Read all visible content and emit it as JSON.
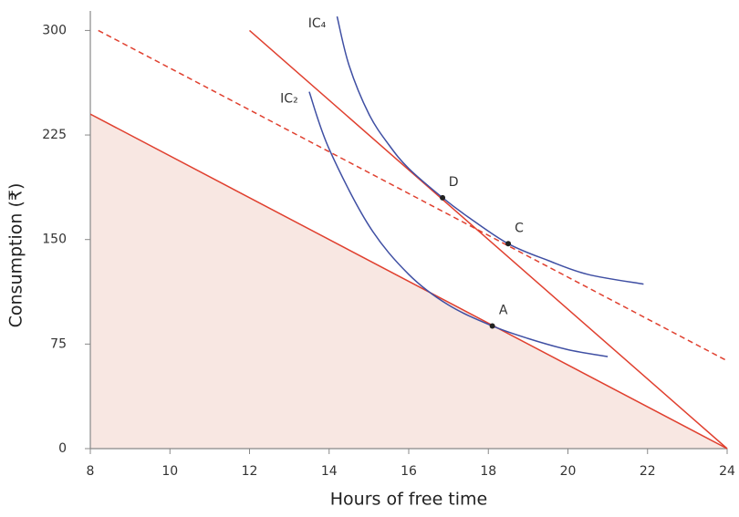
{
  "chart_data": {
    "type": "line",
    "x_label": "Hours of free time",
    "y_label": "Consumption (₹)",
    "xlim": [
      8,
      24
    ],
    "ylim": [
      0,
      314
    ],
    "xticks": [
      8,
      10,
      12,
      14,
      16,
      18,
      20,
      22,
      24
    ],
    "yticks": [
      0,
      75,
      150,
      225,
      300
    ],
    "budget_lines": [
      {
        "x": [
          8,
          24
        ],
        "y": [
          240,
          0
        ],
        "color": "#e0402f",
        "dashed": false,
        "fill": "#f8e7e2"
      },
      {
        "x": [
          12,
          24
        ],
        "y": [
          300,
          0
        ],
        "color": "#e0402f",
        "dashed": false
      },
      {
        "x": [
          8.2,
          24
        ],
        "y": [
          300,
          63
        ],
        "color": "#e0402f",
        "dashed": true
      }
    ],
    "series": [
      {
        "name": "IC₂",
        "color": "#3f4fa3",
        "x": [
          13.5,
          14,
          15,
          16,
          17,
          18.1,
          19,
          20,
          21
        ],
        "values": [
          256,
          215,
          160,
          125,
          103,
          88,
          79,
          71,
          66
        ]
      },
      {
        "name": "IC₄",
        "color": "#3f4fa3",
        "x": [
          14.2,
          14.5,
          15,
          15.5,
          16,
          16.85,
          17.5,
          18.5,
          19.5,
          20.5,
          21.9
        ],
        "values": [
          310,
          275,
          240,
          218,
          201,
          180,
          166,
          147,
          135,
          125,
          118
        ]
      }
    ],
    "points": [
      {
        "label": "A",
        "x": 18.1,
        "y": 88
      },
      {
        "label": "D",
        "x": 16.85,
        "y": 180
      },
      {
        "label": "C",
        "x": 18.5,
        "y": 147
      }
    ]
  }
}
